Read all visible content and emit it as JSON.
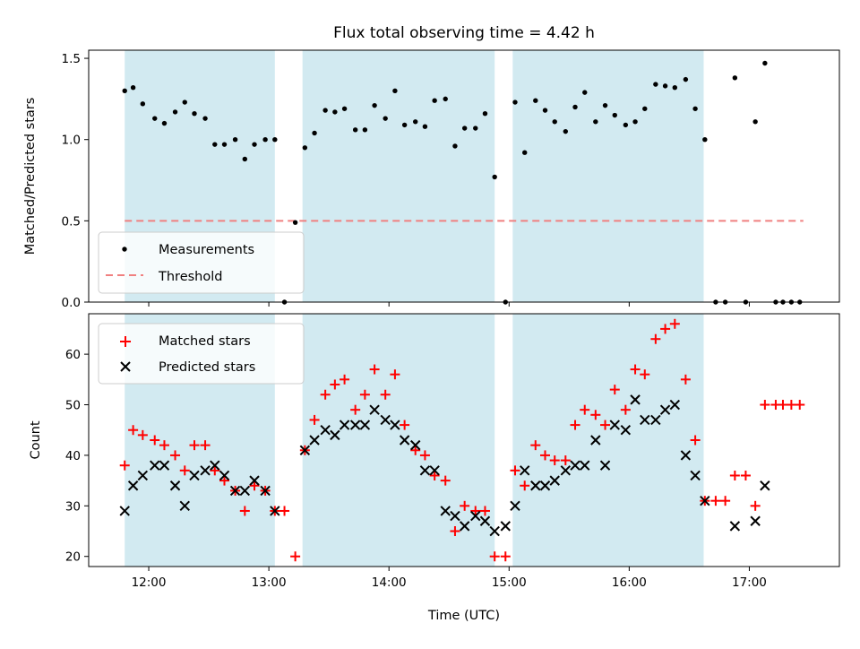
{
  "chart_data": [
    {
      "panel": "top",
      "type": "scatter",
      "title": "Flux total observing time = 4.42 h",
      "ylabel": "Matched/Predicted stars",
      "xlabel": "",
      "ylim": [
        0,
        1.55
      ],
      "yticks": [
        "0.0",
        "0.5",
        "1.0",
        "1.5"
      ],
      "threshold": {
        "name": "Threshold",
        "value": 0.5,
        "x_start": 11.8,
        "x_end": 17.45,
        "color": "#f08080"
      },
      "legend": {
        "placement": "lower-left",
        "entries": [
          "Measurements",
          "Threshold"
        ]
      },
      "series": [
        {
          "name": "Measurements",
          "color": "#000000",
          "marker": "dot",
          "points": [
            [
              11.8,
              1.3
            ],
            [
              11.87,
              1.32
            ],
            [
              11.95,
              1.22
            ],
            [
              12.05,
              1.13
            ],
            [
              12.13,
              1.1
            ],
            [
              12.22,
              1.17
            ],
            [
              12.3,
              1.23
            ],
            [
              12.38,
              1.16
            ],
            [
              12.47,
              1.13
            ],
            [
              12.55,
              0.97
            ],
            [
              12.63,
              0.97
            ],
            [
              12.72,
              1.0
            ],
            [
              12.8,
              0.88
            ],
            [
              12.88,
              0.97
            ],
            [
              12.97,
              1.0
            ],
            [
              13.05,
              1.0
            ],
            [
              13.13,
              0.0
            ],
            [
              13.22,
              0.49
            ],
            [
              13.3,
              0.95
            ],
            [
              13.38,
              1.04
            ],
            [
              13.47,
              1.18
            ],
            [
              13.55,
              1.17
            ],
            [
              13.63,
              1.19
            ],
            [
              13.72,
              1.06
            ],
            [
              13.8,
              1.06
            ],
            [
              13.88,
              1.21
            ],
            [
              13.97,
              1.13
            ],
            [
              14.05,
              1.3
            ],
            [
              14.13,
              1.09
            ],
            [
              14.22,
              1.11
            ],
            [
              14.3,
              1.08
            ],
            [
              14.38,
              1.24
            ],
            [
              14.47,
              1.25
            ],
            [
              14.55,
              0.96
            ],
            [
              14.63,
              1.07
            ],
            [
              14.72,
              1.07
            ],
            [
              14.8,
              1.16
            ],
            [
              14.88,
              0.77
            ],
            [
              14.97,
              0.0
            ],
            [
              15.05,
              1.23
            ],
            [
              15.13,
              0.92
            ],
            [
              15.22,
              1.24
            ],
            [
              15.3,
              1.18
            ],
            [
              15.38,
              1.11
            ],
            [
              15.47,
              1.05
            ],
            [
              15.55,
              1.2
            ],
            [
              15.63,
              1.29
            ],
            [
              15.72,
              1.11
            ],
            [
              15.8,
              1.21
            ],
            [
              15.88,
              1.15
            ],
            [
              15.97,
              1.09
            ],
            [
              16.05,
              1.11
            ],
            [
              16.13,
              1.19
            ],
            [
              16.22,
              1.34
            ],
            [
              16.3,
              1.33
            ],
            [
              16.38,
              1.32
            ],
            [
              16.47,
              1.37
            ],
            [
              16.55,
              1.19
            ],
            [
              16.63,
              1.0
            ],
            [
              16.72,
              0.0
            ],
            [
              16.8,
              0.0
            ],
            [
              16.88,
              1.38
            ],
            [
              16.97,
              0.0
            ],
            [
              17.05,
              1.11
            ],
            [
              17.13,
              1.47
            ],
            [
              17.22,
              0.0
            ],
            [
              17.28,
              0.0
            ],
            [
              17.35,
              0.0
            ],
            [
              17.42,
              0.0
            ]
          ]
        }
      ]
    },
    {
      "panel": "bottom",
      "type": "scatter",
      "title": "",
      "ylabel": "Count",
      "xlabel": "Time (UTC)",
      "ylim": [
        18,
        68
      ],
      "yticks": [
        "20",
        "30",
        "40",
        "50",
        "60"
      ],
      "legend": {
        "placement": "top-left",
        "entries": [
          "Matched stars",
          "Predicted stars"
        ]
      },
      "series": [
        {
          "name": "Matched stars",
          "color": "#ff0000",
          "marker": "plus",
          "points": [
            [
              11.8,
              38
            ],
            [
              11.87,
              45
            ],
            [
              11.95,
              44
            ],
            [
              12.05,
              43
            ],
            [
              12.13,
              42
            ],
            [
              12.22,
              40
            ],
            [
              12.3,
              37
            ],
            [
              12.38,
              42
            ],
            [
              12.47,
              42
            ],
            [
              12.55,
              37
            ],
            [
              12.63,
              35
            ],
            [
              12.72,
              33
            ],
            [
              12.8,
              29
            ],
            [
              12.88,
              34
            ],
            [
              12.97,
              33
            ],
            [
              13.05,
              29
            ],
            [
              13.13,
              29
            ],
            [
              13.22,
              20
            ],
            [
              13.3,
              41
            ],
            [
              13.38,
              47
            ],
            [
              13.47,
              52
            ],
            [
              13.55,
              54
            ],
            [
              13.63,
              55
            ],
            [
              13.72,
              49
            ],
            [
              13.8,
              52
            ],
            [
              13.88,
              57
            ],
            [
              13.97,
              52
            ],
            [
              14.05,
              56
            ],
            [
              14.13,
              46
            ],
            [
              14.22,
              41
            ],
            [
              14.3,
              40
            ],
            [
              14.38,
              36
            ],
            [
              14.47,
              35
            ],
            [
              14.55,
              25
            ],
            [
              14.63,
              30
            ],
            [
              14.72,
              29
            ],
            [
              14.8,
              29
            ],
            [
              14.88,
              20
            ],
            [
              14.97,
              20
            ],
            [
              15.05,
              37
            ],
            [
              15.13,
              34
            ],
            [
              15.22,
              42
            ],
            [
              15.3,
              40
            ],
            [
              15.38,
              39
            ],
            [
              15.47,
              39
            ],
            [
              15.55,
              46
            ],
            [
              15.63,
              49
            ],
            [
              15.72,
              48
            ],
            [
              15.8,
              46
            ],
            [
              15.88,
              53
            ],
            [
              15.97,
              49
            ],
            [
              16.05,
              57
            ],
            [
              16.13,
              56
            ],
            [
              16.22,
              63
            ],
            [
              16.3,
              65
            ],
            [
              16.38,
              66
            ],
            [
              16.47,
              55
            ],
            [
              16.55,
              43
            ],
            [
              16.63,
              31
            ],
            [
              16.72,
              31
            ],
            [
              16.8,
              31
            ],
            [
              16.88,
              36
            ],
            [
              16.97,
              36
            ],
            [
              17.05,
              30
            ],
            [
              17.13,
              50
            ],
            [
              17.22,
              50
            ],
            [
              17.28,
              50
            ],
            [
              17.35,
              50
            ],
            [
              17.42,
              50
            ]
          ]
        },
        {
          "name": "Predicted stars",
          "color": "#000000",
          "marker": "x",
          "points": [
            [
              11.8,
              29
            ],
            [
              11.87,
              34
            ],
            [
              11.95,
              36
            ],
            [
              12.05,
              38
            ],
            [
              12.13,
              38
            ],
            [
              12.22,
              34
            ],
            [
              12.3,
              30
            ],
            [
              12.38,
              36
            ],
            [
              12.47,
              37
            ],
            [
              12.55,
              38
            ],
            [
              12.63,
              36
            ],
            [
              12.72,
              33
            ],
            [
              12.8,
              33
            ],
            [
              12.88,
              35
            ],
            [
              12.97,
              33
            ],
            [
              13.05,
              29
            ],
            [
              13.3,
              41
            ],
            [
              13.38,
              43
            ],
            [
              13.47,
              45
            ],
            [
              13.55,
              44
            ],
            [
              13.63,
              46
            ],
            [
              13.72,
              46
            ],
            [
              13.8,
              46
            ],
            [
              13.88,
              49
            ],
            [
              13.97,
              47
            ],
            [
              14.05,
              46
            ],
            [
              14.13,
              43
            ],
            [
              14.22,
              42
            ],
            [
              14.3,
              37
            ],
            [
              14.38,
              37
            ],
            [
              14.47,
              29
            ],
            [
              14.55,
              28
            ],
            [
              14.63,
              26
            ],
            [
              14.72,
              28
            ],
            [
              14.8,
              27
            ],
            [
              14.88,
              25
            ],
            [
              14.97,
              26
            ],
            [
              15.05,
              30
            ],
            [
              15.13,
              37
            ],
            [
              15.22,
              34
            ],
            [
              15.3,
              34
            ],
            [
              15.38,
              35
            ],
            [
              15.47,
              37
            ],
            [
              15.55,
              38
            ],
            [
              15.63,
              38
            ],
            [
              15.72,
              43
            ],
            [
              15.8,
              38
            ],
            [
              15.88,
              46
            ],
            [
              15.97,
              45
            ],
            [
              16.05,
              51
            ],
            [
              16.13,
              47
            ],
            [
              16.22,
              47
            ],
            [
              16.3,
              49
            ],
            [
              16.38,
              50
            ],
            [
              16.47,
              40
            ],
            [
              16.55,
              36
            ],
            [
              16.63,
              31
            ],
            [
              16.88,
              26
            ],
            [
              17.05,
              27
            ],
            [
              17.13,
              34
            ]
          ]
        }
      ]
    }
  ],
  "shared": {
    "xlim": [
      11.5,
      17.75
    ],
    "xticks": [
      {
        "value": 12,
        "label": "12:00"
      },
      {
        "value": 13,
        "label": "13:00"
      },
      {
        "value": 14,
        "label": "14:00"
      },
      {
        "value": 15,
        "label": "15:00"
      },
      {
        "value": 16,
        "label": "16:00"
      },
      {
        "value": 17,
        "label": "17:00"
      }
    ],
    "shaded_intervals": [
      [
        11.8,
        13.05
      ],
      [
        13.28,
        14.88
      ],
      [
        15.03,
        16.62
      ]
    ],
    "shade_color": "#add8e6"
  }
}
